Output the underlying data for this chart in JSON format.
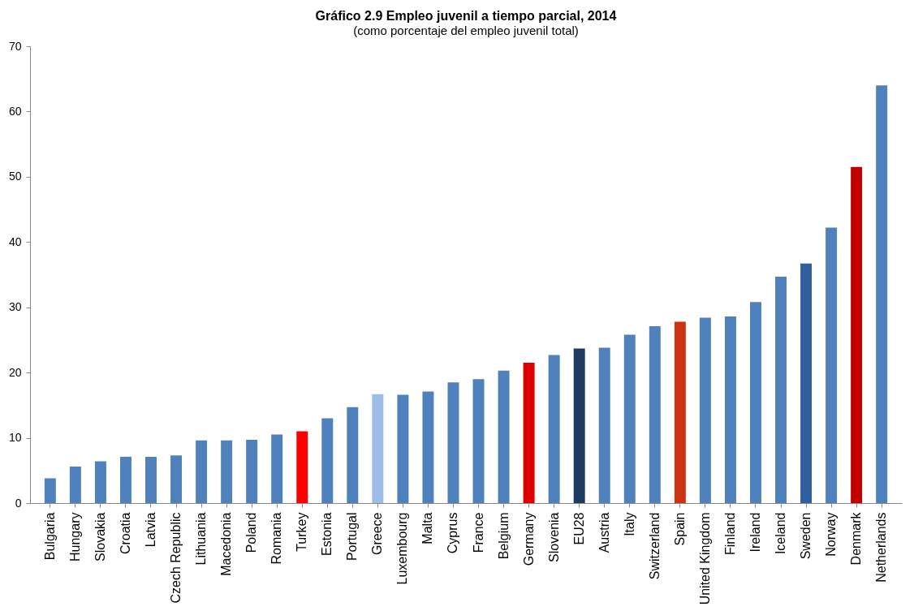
{
  "chart_data": {
    "type": "bar",
    "title": "Gráfico 2.9 Empleo juvenil a tiempo parcial, 2014",
    "subtitle": "(como porcentaje del empleo juvenil total)",
    "categories": [
      "Bulgaria",
      "Hungary",
      "Slovakia",
      "Croatia",
      "Latvia",
      "Czech Republic",
      "Lithuania",
      "Macedonia",
      "Poland",
      "Romania",
      "Turkey",
      "Estonia",
      "Portugal",
      "Greece",
      "Luxembourg",
      "Malta",
      "Cyprus",
      "France",
      "Belgium",
      "Germany",
      "Slovenia",
      "EU28",
      "Austria",
      "Italy",
      "Switzerland",
      "Spain",
      "United Kingdom",
      "Finland",
      "Ireland",
      "Iceland",
      "Sweden",
      "Norway",
      "Denmark",
      "Netherlands"
    ],
    "values": [
      3.8,
      5.6,
      6.4,
      7.1,
      7.1,
      7.3,
      9.6,
      9.6,
      9.7,
      10.5,
      11.0,
      13.0,
      14.7,
      16.7,
      16.6,
      17.1,
      18.5,
      19.0,
      20.3,
      21.5,
      22.7,
      23.7,
      23.8,
      25.8,
      27.1,
      27.8,
      28.4,
      28.6,
      30.8,
      34.7,
      36.7,
      42.2,
      51.5,
      64.0
    ],
    "colors": [
      "#4f81bd",
      "#4f81bd",
      "#4f81bd",
      "#4f81bd",
      "#4f81bd",
      "#4f81bd",
      "#4f81bd",
      "#4f81bd",
      "#4f81bd",
      "#4f81bd",
      "#ff0000",
      "#4f81bd",
      "#4f81bd",
      "#9dbde6",
      "#4f81bd",
      "#4f81bd",
      "#4f81bd",
      "#4f81bd",
      "#4f81bd",
      "#dd0000",
      "#4f81bd",
      "#1f3a5f",
      "#4f81bd",
      "#4f81bd",
      "#4f81bd",
      "#cc3311",
      "#4f81bd",
      "#4f81bd",
      "#4f81bd",
      "#4f81bd",
      "#2f5f9f",
      "#4f81bd",
      "#c00000",
      "#4f81bd"
    ],
    "ylim": [
      0,
      70
    ],
    "yticks": [
      0,
      10,
      20,
      30,
      40,
      50,
      60,
      70
    ],
    "grid": false
  }
}
